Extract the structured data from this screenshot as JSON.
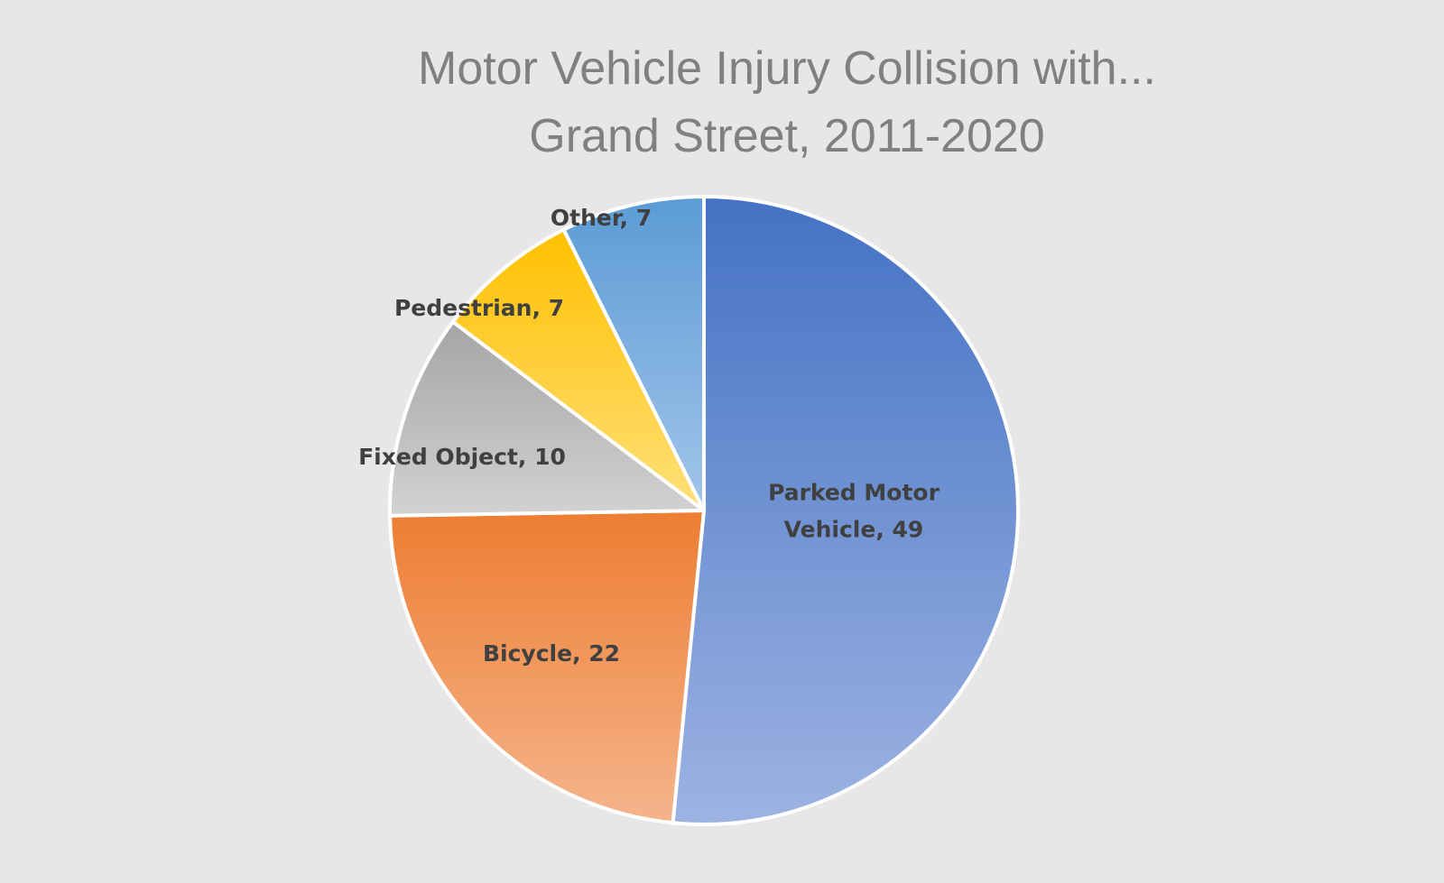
{
  "chart_data": {
    "type": "pie",
    "title": [
      "Motor Vehicle Injury Collision with...",
      "Grand Street, 2011-2020"
    ],
    "slices": [
      {
        "label": "Parked Motor Vehicle",
        "label_lines": [
          "Parked Motor",
          "Vehicle, 49"
        ],
        "value": 49,
        "color_top": "#4472c4",
        "color_bottom": "#9db3e2"
      },
      {
        "label": "Bicycle",
        "label_lines": [
          "Bicycle, 22"
        ],
        "value": 22,
        "color_top": "#ed7d31",
        "color_bottom": "#f5b48c"
      },
      {
        "label": "Fixed Object",
        "label_lines": [
          "Fixed Object, 10"
        ],
        "value": 10,
        "color_top": "#a5a5a5",
        "color_bottom": "#d2d2d2"
      },
      {
        "label": "Pedestrian",
        "label_lines": [
          "Pedestrian, 7"
        ],
        "value": 7,
        "color_top": "#ffc000",
        "color_bottom": "#ffe07a"
      },
      {
        "label": "Other",
        "label_lines": [
          "Other, 7"
        ],
        "value": 7,
        "color_top": "#5b9bd5",
        "color_bottom": "#a3c5ea"
      }
    ],
    "legend": "none",
    "start_angle_deg": 0,
    "direction": "clockwise"
  }
}
